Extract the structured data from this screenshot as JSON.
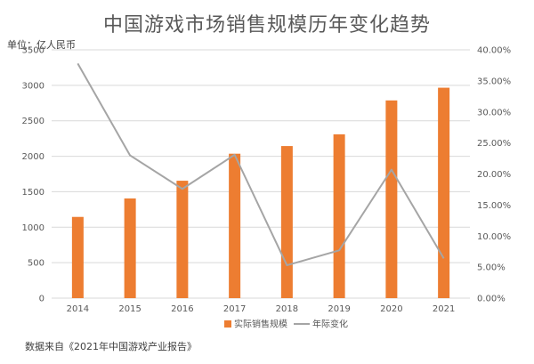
{
  "title": "中国游戏市场销售规模历年变化趋势",
  "unit": "单位：亿人民币",
  "source": "数据来自《2021年中国游戏产业报告》",
  "chart_data": {
    "type": "bar+line",
    "categories": [
      "2014",
      "2015",
      "2016",
      "2017",
      "2018",
      "2019",
      "2020",
      "2021"
    ],
    "series": [
      {
        "name": "实际销售规模",
        "type": "bar",
        "axis": "left",
        "color": "#ED7D31",
        "values": [
          1145,
          1405,
          1655,
          2036,
          2144,
          2309,
          2787,
          2966
        ]
      },
      {
        "name": "年际变化",
        "type": "line",
        "axis": "right",
        "color": "#A5A5A5",
        "values": [
          0.378,
          0.23,
          0.176,
          0.231,
          0.053,
          0.077,
          0.207,
          0.064
        ]
      }
    ],
    "y_left": {
      "min": 0,
      "max": 3500,
      "step": 500
    },
    "y_right": {
      "min": 0,
      "max": 0.4,
      "step": 0.05,
      "format": "percent2"
    },
    "grid": true,
    "legend": "bottom"
  }
}
